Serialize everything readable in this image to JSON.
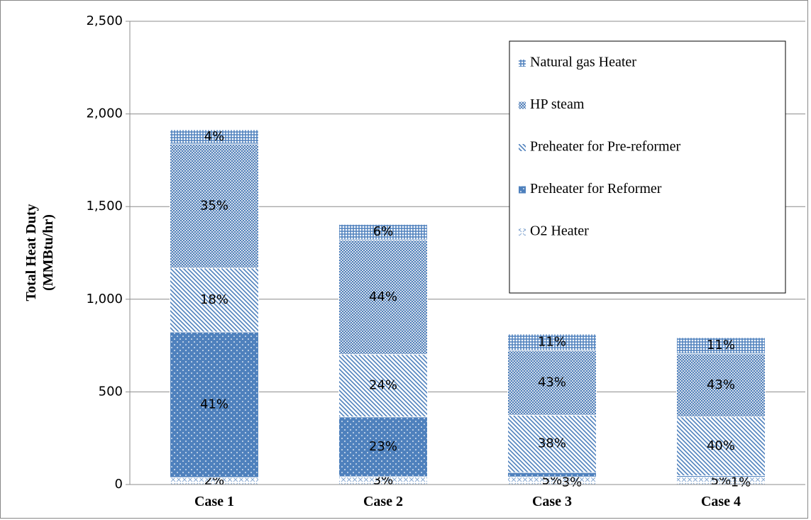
{
  "chart_data": {
    "type": "stacked_bar",
    "ylabel": [
      "Total Heat Duty",
      "(MMBtu/hr)"
    ],
    "categories": [
      "Case 1",
      "Case 2",
      "Case 3",
      "Case 4"
    ],
    "series": [
      {
        "name": "O2 Heater",
        "color": "#4f81bd",
        "pattern": "cross",
        "values": [
          38,
          42,
          41,
          40
        ],
        "value_labels": [
          "2%",
          "3%",
          "5%",
          "5%"
        ]
      },
      {
        "name": "Preheater for Reformer",
        "color": "#4f81bd",
        "pattern": "dots",
        "values": [
          785,
          323,
          24,
          8
        ],
        "value_labels": [
          "41%",
          "23%",
          "3%",
          "1%"
        ]
      },
      {
        "name": "Preheater for Pre-reformer",
        "color": "#4f81bd",
        "pattern": "diagonal",
        "values": [
          345,
          337,
          309,
          317
        ],
        "value_labels": [
          "18%",
          "24%",
          "38%",
          "40%"
        ]
      },
      {
        "name": "HP steam",
        "color": "#4f81bd",
        "pattern": "checker",
        "values": [
          670,
          618,
          349,
          341
        ],
        "value_labels": [
          "35%",
          "44%",
          "43%",
          "43%"
        ]
      },
      {
        "name": "Natural gas Heater",
        "color": "#4f81bd",
        "pattern": "plaid",
        "values": [
          77,
          84,
          89,
          87
        ],
        "value_labels": [
          "4%",
          "6%",
          "11%",
          "11%"
        ]
      }
    ],
    "ylim": [
      0,
      2500
    ],
    "yticks": [
      0,
      500,
      {
        "value": 1000,
        "label": "1,000"
      },
      {
        "value": 1500,
        "label": "1,500"
      },
      {
        "value": 2000,
        "label": "2,000"
      },
      {
        "value": 2500,
        "label": "2,500"
      }
    ],
    "grid": true,
    "legend": "upper right"
  }
}
